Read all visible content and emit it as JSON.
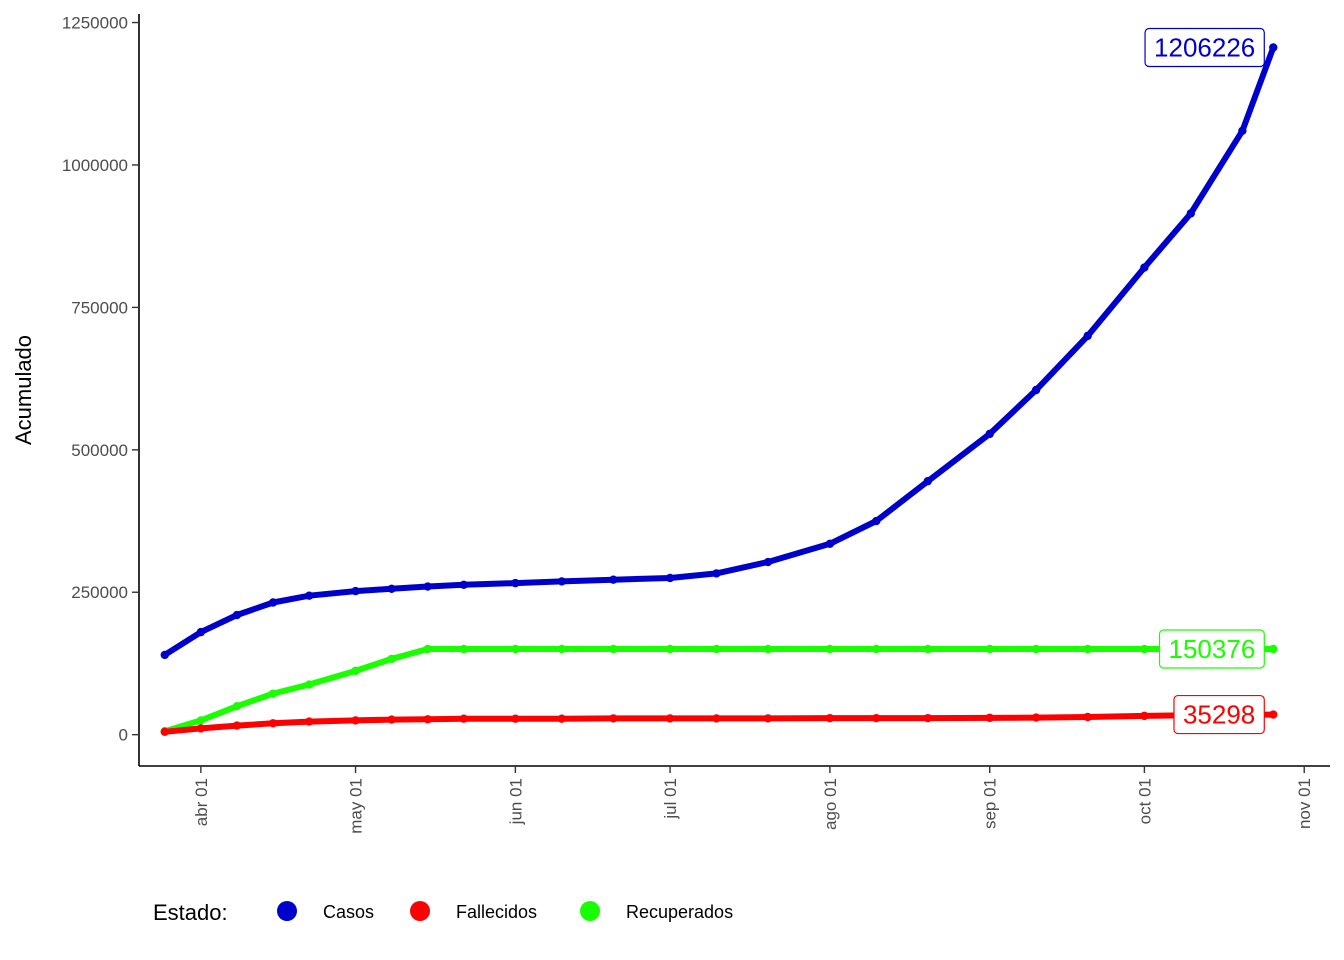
{
  "chart_data": {
    "type": "line",
    "title": "",
    "xlabel": "",
    "ylabel": "Acumulado",
    "x_ticks": [
      "abr 01",
      "may 01",
      "jun 01",
      "jul 01",
      "ago 01",
      "sep 01",
      "oct 01",
      "nov 01"
    ],
    "x_tick_dates": [
      "2020-04-01",
      "2020-05-01",
      "2020-06-01",
      "2020-07-01",
      "2020-08-01",
      "2020-09-01",
      "2020-10-01",
      "2020-11-01"
    ],
    "y_ticks": [
      "0",
      "250000",
      "500000",
      "750000",
      "1000000",
      "1250000"
    ],
    "xlim": [
      "2020-03-20",
      "2020-11-06"
    ],
    "ylim": [
      -55000,
      1265000
    ],
    "grid": false,
    "legend": {
      "title": "Estado:",
      "position": "bottom-left"
    },
    "x": [
      "2020-03-25",
      "2020-04-01",
      "2020-04-08",
      "2020-04-15",
      "2020-04-22",
      "2020-05-01",
      "2020-05-08",
      "2020-05-15",
      "2020-05-22",
      "2020-06-01",
      "2020-06-10",
      "2020-06-20",
      "2020-07-01",
      "2020-07-10",
      "2020-07-20",
      "2020-08-01",
      "2020-08-10",
      "2020-08-20",
      "2020-09-01",
      "2020-09-10",
      "2020-09-20",
      "2020-10-01",
      "2020-10-10",
      "2020-10-20",
      "2020-10-26"
    ],
    "series": [
      {
        "name": "Casos",
        "color": "#0000CD",
        "end_label": "1206226",
        "values": [
          140000,
          180000,
          210000,
          232000,
          244000,
          252000,
          256000,
          260000,
          263000,
          266000,
          269000,
          272000,
          275000,
          283000,
          303000,
          335000,
          375000,
          445000,
          528000,
          605000,
          700000,
          820000,
          915000,
          1060000,
          1206226
        ]
      },
      {
        "name": "Fallecidos",
        "color": "#FF0000",
        "end_label": "35298",
        "values": [
          5000,
          11000,
          16000,
          20000,
          23000,
          25000,
          26500,
          27000,
          28000,
          28000,
          28000,
          28500,
          28500,
          28500,
          28500,
          29000,
          29000,
          29000,
          29500,
          30000,
          31000,
          33000,
          34000,
          35000,
          35298
        ]
      },
      {
        "name": "Recuperados",
        "color": "#1AFF00",
        "end_label": "150376",
        "values": [
          6000,
          25000,
          50000,
          72000,
          88000,
          112000,
          133000,
          150376,
          150376,
          150376,
          150376,
          150376,
          150376,
          150376,
          150376,
          150376,
          150376,
          150376,
          150376,
          150376,
          150376,
          150376,
          150376,
          150376,
          150376
        ]
      }
    ]
  }
}
